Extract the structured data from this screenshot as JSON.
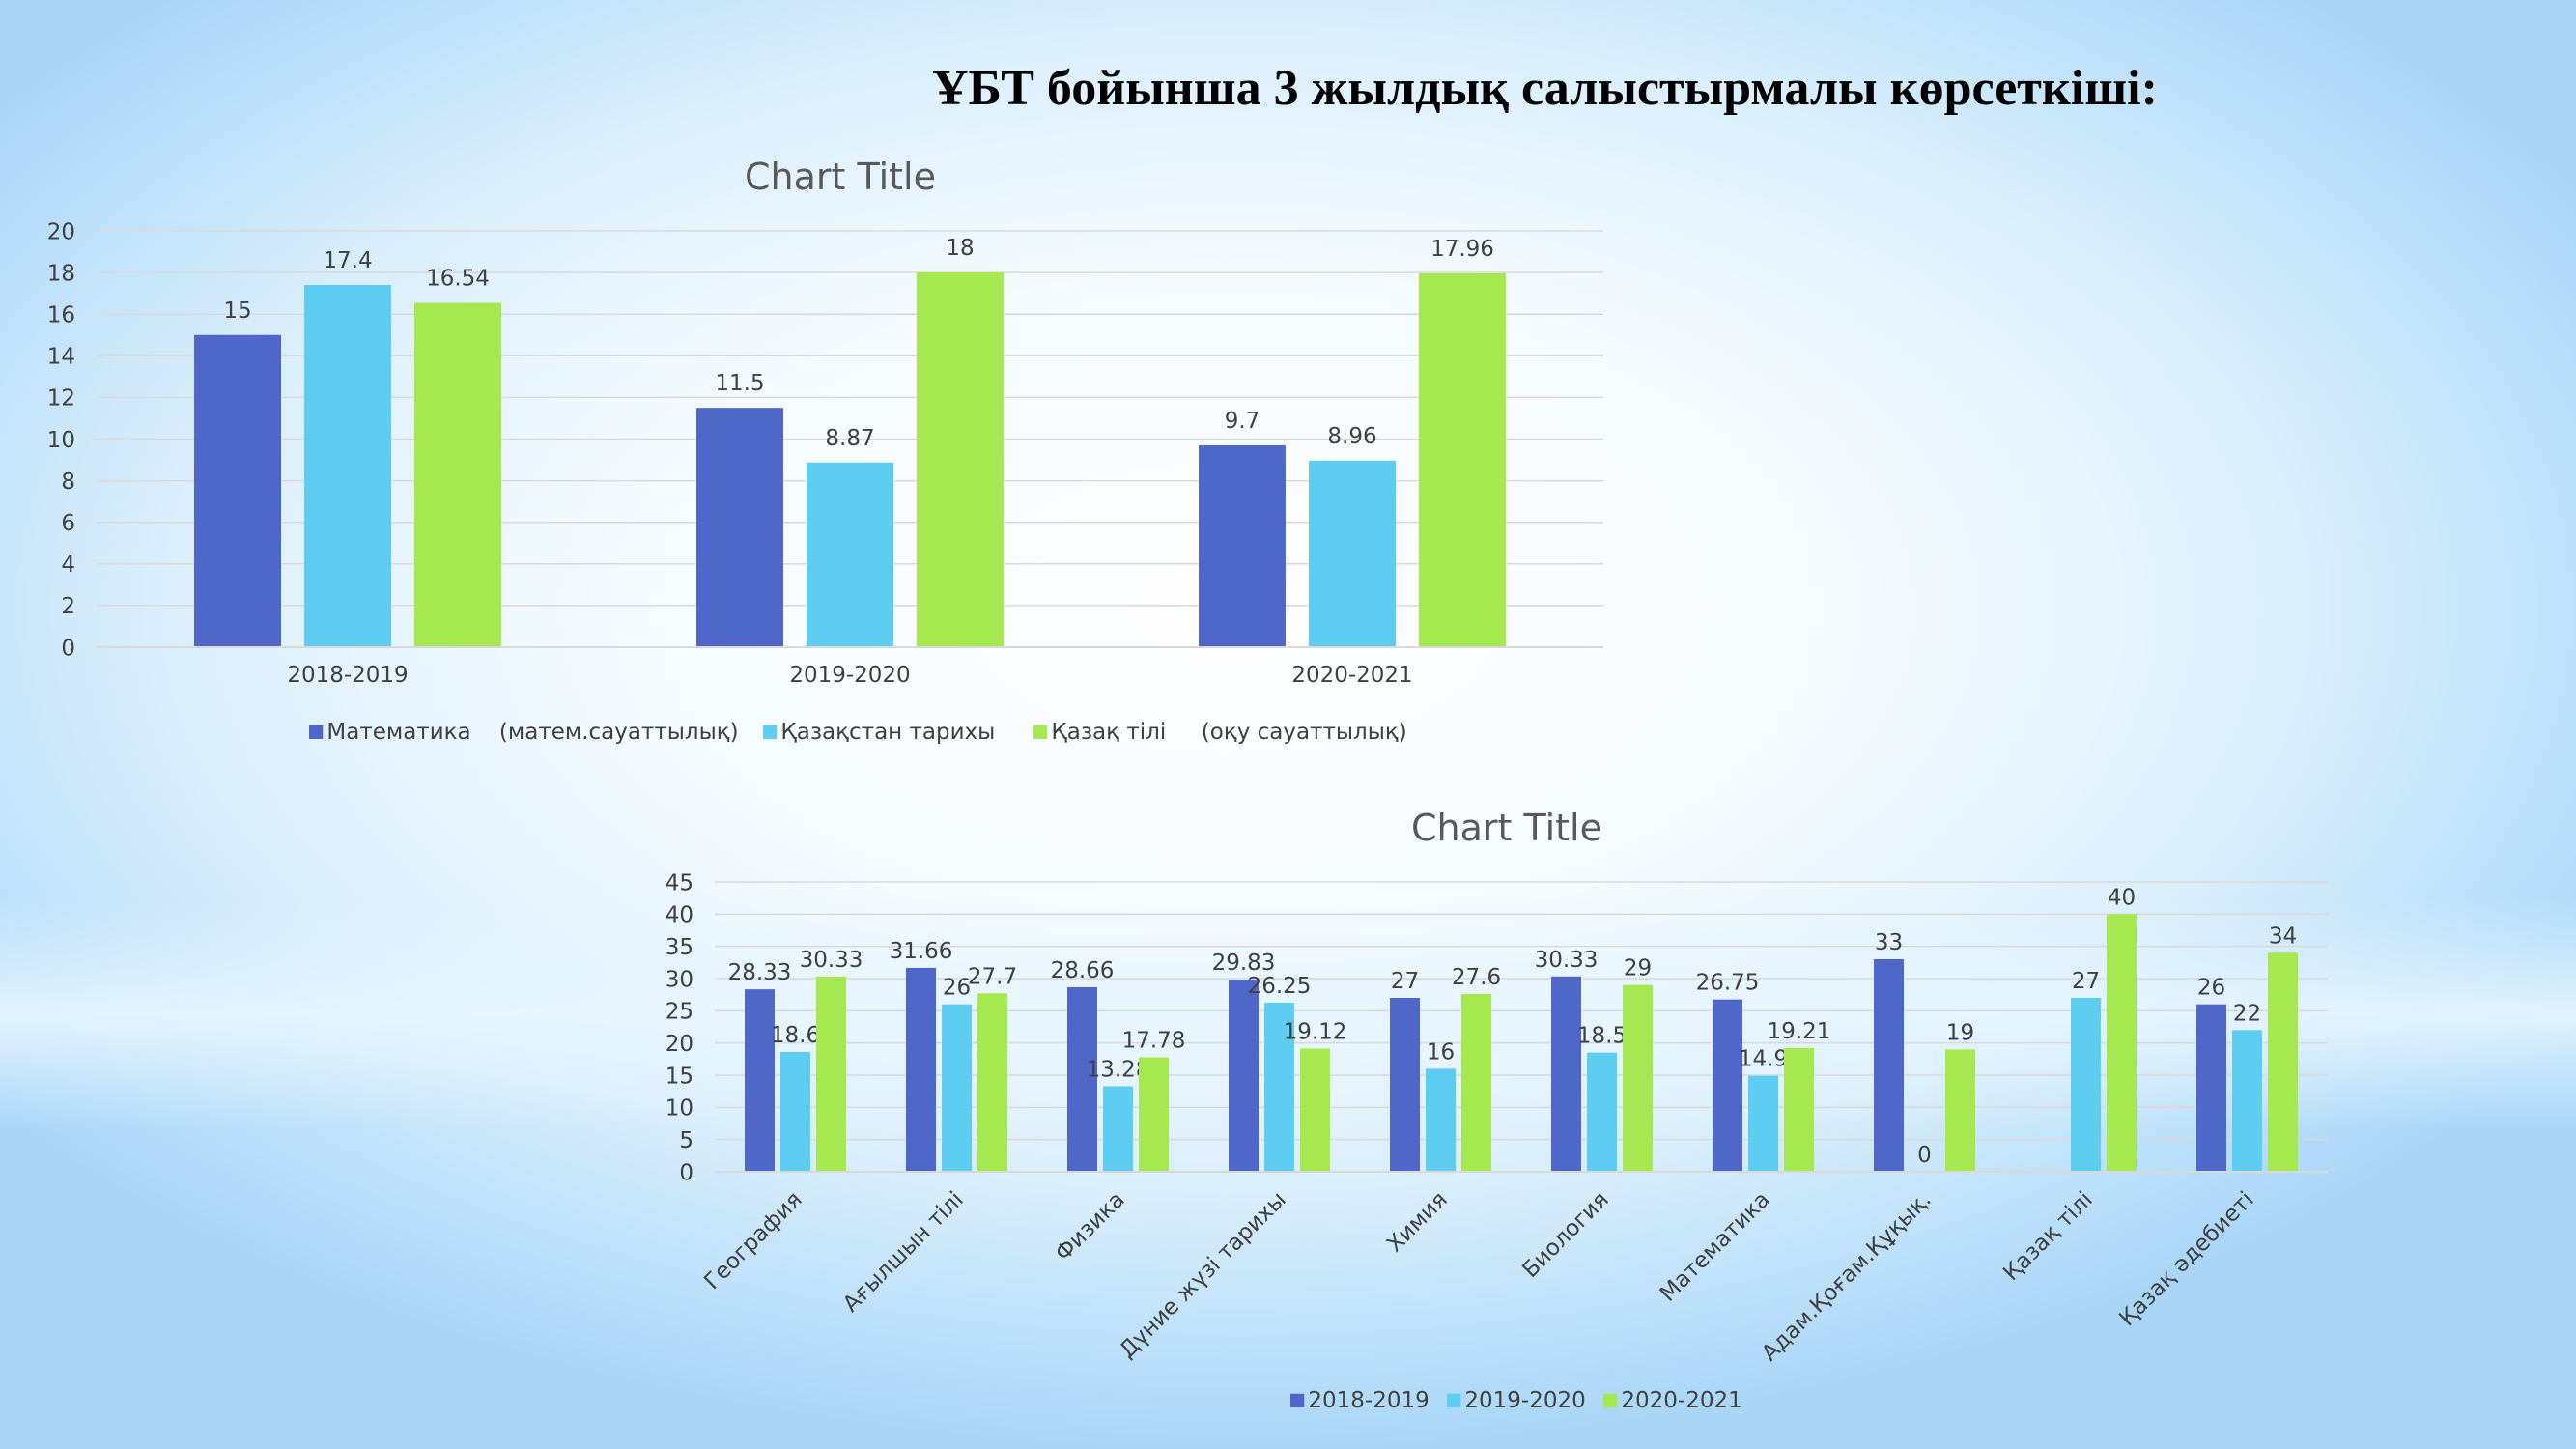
{
  "slide_title": "ҰБТ бойынша  3 жылдық салыстырмалы көрсеткіші:",
  "colors": {
    "series1": "#4F67C9",
    "series2": "#5ECDF2",
    "series3": "#A6E84F",
    "grid": "#D9D9D9"
  },
  "chart_data": [
    {
      "type": "bar",
      "title": "Chart Title",
      "categories": [
        "2018-2019",
        "2019-2020",
        "2020-2021"
      ],
      "series": [
        {
          "name": "Математика    (матем.сауаттылық)",
          "values": [
            15,
            11.5,
            9.7
          ]
        },
        {
          "name": "Қазақстан тарихы",
          "values": [
            17.4,
            8.87,
            8.96
          ]
        },
        {
          "name": "Қазақ тілі     (оқу сауаттылық)",
          "values": [
            16.54,
            18,
            17.96
          ]
        }
      ],
      "ylim": [
        0,
        20
      ],
      "yticks": [
        0,
        2,
        4,
        6,
        8,
        10,
        12,
        14,
        16,
        18,
        20
      ],
      "grid": true,
      "legend": "bottom"
    },
    {
      "type": "bar",
      "title": "Chart Title",
      "categories": [
        "География",
        "Ағылшын тілі",
        "Физика",
        "Дүние жүзі тарихы",
        "Химия",
        "Биология",
        "Математика",
        "Адам.Қоғам.Құқық.",
        "Қазақ тілі",
        "Қазақ әдебиеті"
      ],
      "series": [
        {
          "name": "2018-2019",
          "values": [
            28.33,
            31.66,
            28.66,
            29.83,
            27,
            30.33,
            26.75,
            33,
            null,
            26
          ]
        },
        {
          "name": "2019-2020",
          "values": [
            18.6,
            26,
            13.28,
            26.25,
            16,
            18.5,
            14.9,
            0,
            27,
            22
          ]
        },
        {
          "name": "2020-2021",
          "values": [
            30.33,
            27.7,
            17.78,
            19.12,
            27.6,
            29,
            19.21,
            19,
            40,
            34
          ]
        }
      ],
      "ylim": [
        0,
        45
      ],
      "yticks": [
        0,
        5,
        10,
        15,
        20,
        25,
        30,
        35,
        40,
        45
      ],
      "grid": true,
      "legend": "bottom"
    }
  ]
}
